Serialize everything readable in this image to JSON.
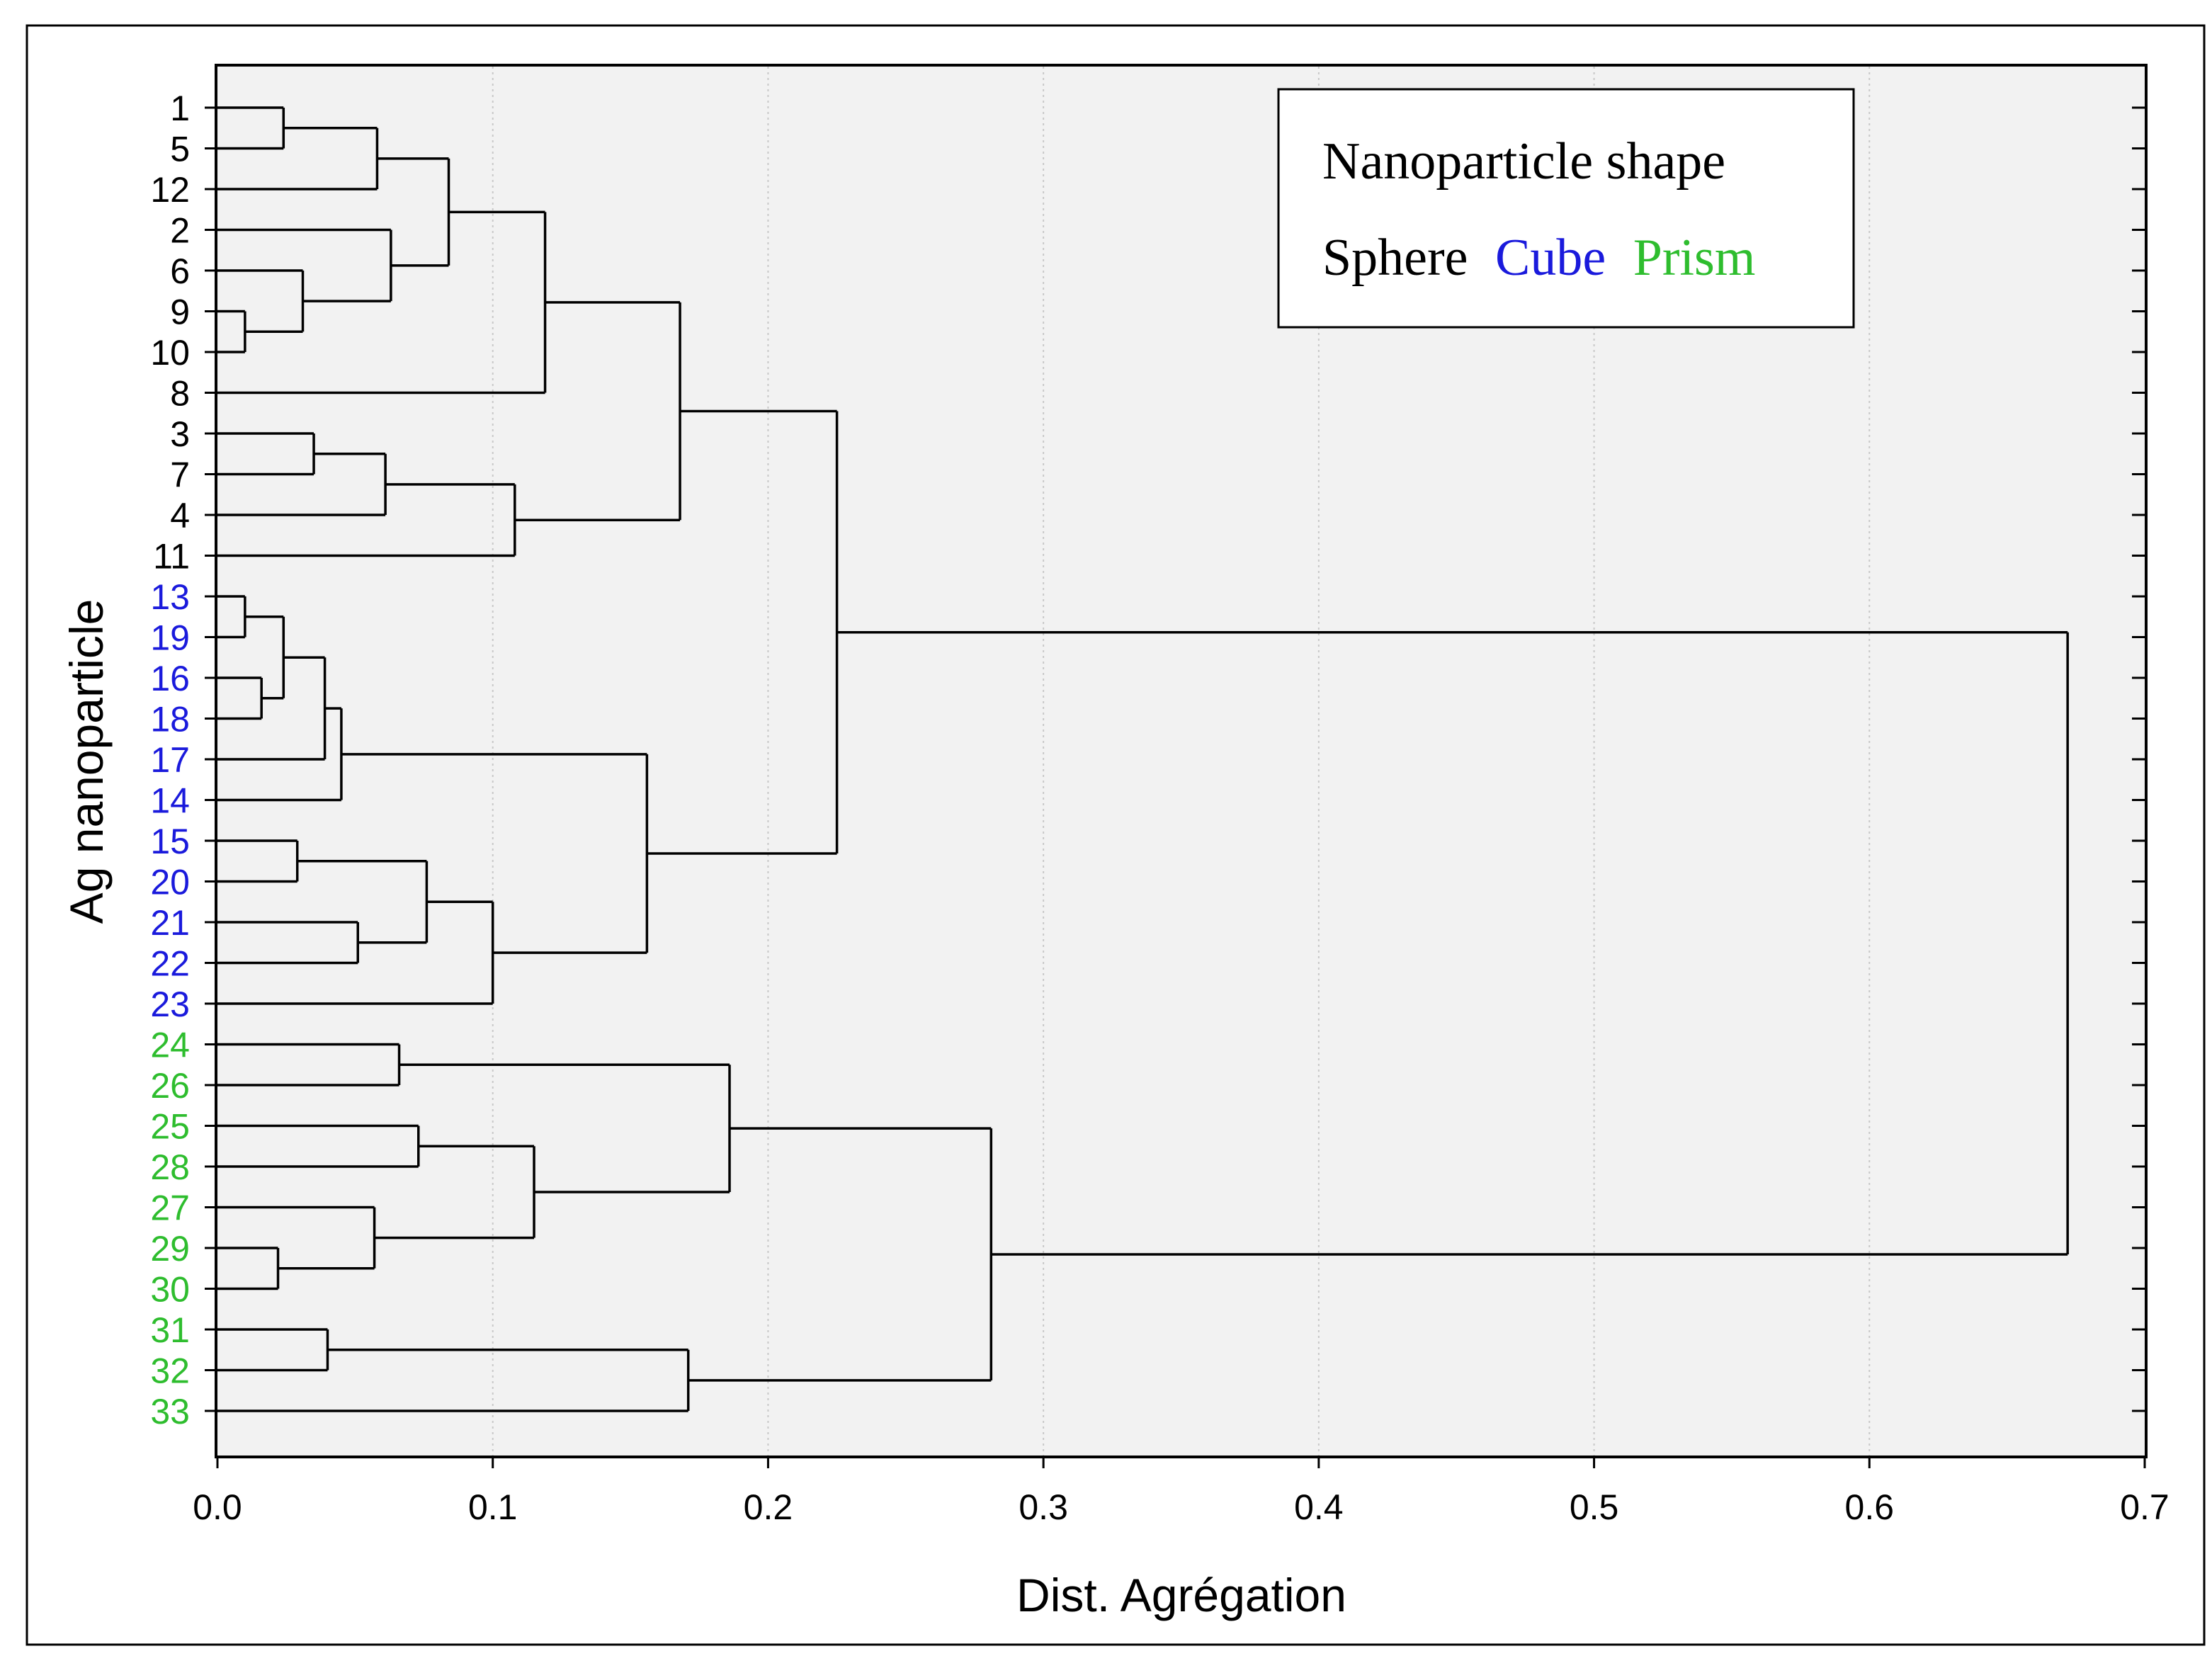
{
  "chart_data": {
    "type": "dendrogram",
    "orientation": "horizontal",
    "xlabel": "Dist. Agrégation",
    "ylabel": "Ag nanoparticle",
    "xlim": [
      0.0,
      0.7
    ],
    "xticks": [
      "0.0",
      "0.1",
      "0.2",
      "0.3",
      "0.4",
      "0.5",
      "0.6",
      "0.7"
    ],
    "xtick_values": [
      0.0,
      0.1,
      0.2,
      0.3,
      0.4,
      0.5,
      0.6,
      0.7
    ],
    "grid": "vertical dotted",
    "legend": {
      "title": "Nanoparticle shape",
      "placement": "top-right",
      "entries": [
        {
          "label": "Sphere",
          "color": "#000000"
        },
        {
          "label": "Cube",
          "color": "#1a1adc"
        },
        {
          "label": "Prism",
          "color": "#2ebd2e"
        }
      ]
    },
    "colors": {
      "Sphere": "#000000",
      "Cube": "#1a1adc",
      "Prism": "#2ebd2e",
      "background": "#f2f2f2"
    },
    "leaves": [
      {
        "label": "1",
        "shape": "Sphere"
      },
      {
        "label": "5",
        "shape": "Sphere"
      },
      {
        "label": "12",
        "shape": "Sphere"
      },
      {
        "label": "2",
        "shape": "Sphere"
      },
      {
        "label": "6",
        "shape": "Sphere"
      },
      {
        "label": "9",
        "shape": "Sphere"
      },
      {
        "label": "10",
        "shape": "Sphere"
      },
      {
        "label": "8",
        "shape": "Sphere"
      },
      {
        "label": "3",
        "shape": "Sphere"
      },
      {
        "label": "7",
        "shape": "Sphere"
      },
      {
        "label": "4",
        "shape": "Sphere"
      },
      {
        "label": "11",
        "shape": "Sphere"
      },
      {
        "label": "13",
        "shape": "Cube"
      },
      {
        "label": "19",
        "shape": "Cube"
      },
      {
        "label": "16",
        "shape": "Cube"
      },
      {
        "label": "18",
        "shape": "Cube"
      },
      {
        "label": "17",
        "shape": "Cube"
      },
      {
        "label": "14",
        "shape": "Cube"
      },
      {
        "label": "15",
        "shape": "Cube"
      },
      {
        "label": "20",
        "shape": "Cube"
      },
      {
        "label": "21",
        "shape": "Cube"
      },
      {
        "label": "22",
        "shape": "Cube"
      },
      {
        "label": "23",
        "shape": "Cube"
      },
      {
        "label": "24",
        "shape": "Prism"
      },
      {
        "label": "26",
        "shape": "Prism"
      },
      {
        "label": "25",
        "shape": "Prism"
      },
      {
        "label": "28",
        "shape": "Prism"
      },
      {
        "label": "27",
        "shape": "Prism"
      },
      {
        "label": "29",
        "shape": "Prism"
      },
      {
        "label": "30",
        "shape": "Prism"
      },
      {
        "label": "31",
        "shape": "Prism"
      },
      {
        "label": "32",
        "shape": "Prism"
      },
      {
        "label": "33",
        "shape": "Prism"
      }
    ],
    "merges": [
      {
        "id": "m_1_5",
        "children": [
          "1",
          "5"
        ],
        "height": 0.024
      },
      {
        "id": "m_1_5_12",
        "children": [
          "m_1_5",
          "12"
        ],
        "height": 0.058
      },
      {
        "id": "m_9_10",
        "children": [
          "9",
          "10"
        ],
        "height": 0.01
      },
      {
        "id": "m_6_9_10",
        "children": [
          "6",
          "m_9_10"
        ],
        "height": 0.031
      },
      {
        "id": "m_2_6_9_10",
        "children": [
          "2",
          "m_6_9_10"
        ],
        "height": 0.063
      },
      {
        "id": "m_A",
        "children": [
          "m_1_5_12",
          "m_2_6_9_10"
        ],
        "height": 0.084
      },
      {
        "id": "m_A8",
        "children": [
          "m_A",
          "8"
        ],
        "height": 0.119
      },
      {
        "id": "m_3_7",
        "children": [
          "3",
          "7"
        ],
        "height": 0.035
      },
      {
        "id": "m_3_7_4",
        "children": [
          "m_3_7",
          "4"
        ],
        "height": 0.061
      },
      {
        "id": "m_3_7_4_11",
        "children": [
          "m_3_7_4",
          "11"
        ],
        "height": 0.108
      },
      {
        "id": "m_sphere",
        "children": [
          "m_A8",
          "m_3_7_4_11"
        ],
        "height": 0.168
      },
      {
        "id": "m_13_19",
        "children": [
          "13",
          "19"
        ],
        "height": 0.01
      },
      {
        "id": "m_16_18",
        "children": [
          "16",
          "18"
        ],
        "height": 0.016
      },
      {
        "id": "m_13_19_16_18",
        "children": [
          "m_13_19",
          "m_16_18"
        ],
        "height": 0.024
      },
      {
        "id": "m_c1",
        "children": [
          "m_13_19_16_18",
          "17"
        ],
        "height": 0.039
      },
      {
        "id": "m_c2",
        "children": [
          "m_c1",
          "14"
        ],
        "height": 0.045
      },
      {
        "id": "m_15_20",
        "children": [
          "15",
          "20"
        ],
        "height": 0.029
      },
      {
        "id": "m_21_22",
        "children": [
          "21",
          "22"
        ],
        "height": 0.051
      },
      {
        "id": "m_15_20_21_22",
        "children": [
          "m_15_20",
          "m_21_22"
        ],
        "height": 0.076
      },
      {
        "id": "m_c3",
        "children": [
          "m_15_20_21_22",
          "23"
        ],
        "height": 0.1
      },
      {
        "id": "m_cube",
        "children": [
          "m_c2",
          "m_c3"
        ],
        "height": 0.156
      },
      {
        "id": "m_sphere_cube",
        "children": [
          "m_sphere",
          "m_cube"
        ],
        "height": 0.225
      },
      {
        "id": "m_24_26",
        "children": [
          "24",
          "26"
        ],
        "height": 0.066
      },
      {
        "id": "m_25_28",
        "children": [
          "25",
          "28"
        ],
        "height": 0.073
      },
      {
        "id": "m_29_30",
        "children": [
          "29",
          "30"
        ],
        "height": 0.022
      },
      {
        "id": "m_27_29_30",
        "children": [
          "27",
          "m_29_30"
        ],
        "height": 0.057
      },
      {
        "id": "m_p1",
        "children": [
          "m_25_28",
          "m_27_29_30"
        ],
        "height": 0.115
      },
      {
        "id": "m_p2",
        "children": [
          "m_24_26",
          "m_p1"
        ],
        "height": 0.186
      },
      {
        "id": "m_31_32",
        "children": [
          "31",
          "32"
        ],
        "height": 0.04
      },
      {
        "id": "m_31_32_33",
        "children": [
          "m_31_32",
          "33"
        ],
        "height": 0.171
      },
      {
        "id": "m_prism",
        "children": [
          "m_p2",
          "m_31_32_33"
        ],
        "height": 0.281
      },
      {
        "id": "m_root",
        "children": [
          "m_sphere_cube",
          "m_prism"
        ],
        "height": 0.672
      }
    ]
  }
}
